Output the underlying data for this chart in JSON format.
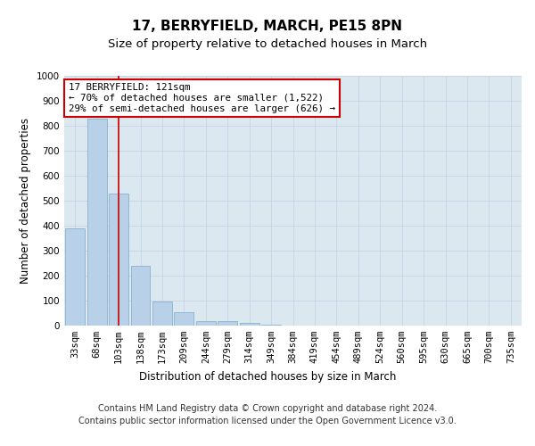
{
  "title1": "17, BERRYFIELD, MARCH, PE15 8PN",
  "title2": "Size of property relative to detached houses in March",
  "xlabel": "Distribution of detached houses by size in March",
  "ylabel": "Number of detached properties",
  "categories": [
    "33sqm",
    "68sqm",
    "103sqm",
    "138sqm",
    "173sqm",
    "209sqm",
    "244sqm",
    "279sqm",
    "314sqm",
    "349sqm",
    "384sqm",
    "419sqm",
    "454sqm",
    "489sqm",
    "524sqm",
    "560sqm",
    "595sqm",
    "630sqm",
    "665sqm",
    "700sqm",
    "735sqm"
  ],
  "values": [
    390,
    830,
    530,
    240,
    95,
    52,
    18,
    18,
    12,
    5,
    0,
    0,
    0,
    0,
    0,
    0,
    0,
    0,
    0,
    0,
    0
  ],
  "bar_color": "#b8d0e8",
  "bar_edge_color": "#7aaac8",
  "vline_x_index": 2,
  "vline_color": "#cc0000",
  "annotation_text": "17 BERRYFIELD: 121sqm\n← 70% of detached houses are smaller (1,522)\n29% of semi-detached houses are larger (626) →",
  "annotation_box_color": "#ffffff",
  "annotation_box_edge_color": "#cc0000",
  "ylim": [
    0,
    1000
  ],
  "yticks": [
    0,
    100,
    200,
    300,
    400,
    500,
    600,
    700,
    800,
    900,
    1000
  ],
  "grid_color": "#c8d4e8",
  "background_color": "#dce8f0",
  "footer_text": "Contains HM Land Registry data © Crown copyright and database right 2024.\nContains public sector information licensed under the Open Government Licence v3.0.",
  "title1_fontsize": 11,
  "title2_fontsize": 9.5,
  "axis_label_fontsize": 8.5,
  "tick_fontsize": 7.5,
  "footer_fontsize": 7
}
